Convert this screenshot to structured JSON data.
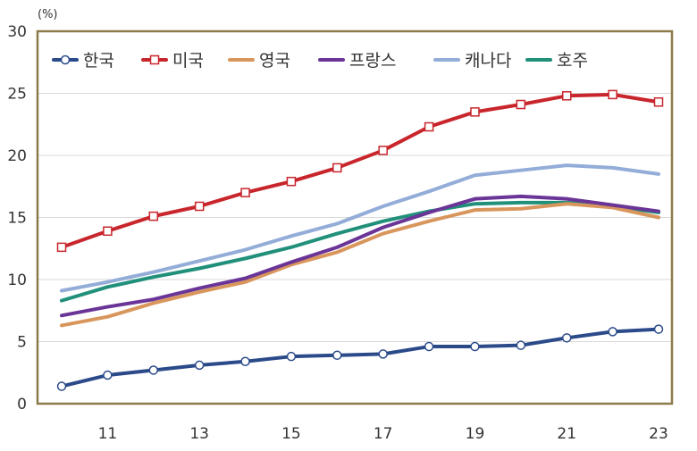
{
  "chart_data": {
    "type": "line",
    "unit_label": "(%)",
    "x": [
      2010,
      2011,
      2012,
      2013,
      2014,
      2015,
      2016,
      2017,
      2018,
      2019,
      2020,
      2021,
      2022,
      2023
    ],
    "xticks": [
      2011,
      2013,
      2015,
      2017,
      2019,
      2021,
      2023
    ],
    "xtick_labels": [
      "11",
      "13",
      "15",
      "17",
      "19",
      "21",
      "23"
    ],
    "ylim": [
      0,
      30
    ],
    "yticks": [
      0,
      5,
      10,
      15,
      20,
      25,
      30
    ],
    "ytick_labels": [
      "0",
      "5",
      "10",
      "15",
      "20",
      "25",
      "30"
    ],
    "grid": true,
    "legend_position": "top",
    "series": [
      {
        "name": "한국",
        "color": "#2b4a8a",
        "marker": "circle",
        "values": [
          1.4,
          2.3,
          2.7,
          3.1,
          3.4,
          3.8,
          3.9,
          4.0,
          4.6,
          4.6,
          4.7,
          5.3,
          5.8,
          6.0
        ]
      },
      {
        "name": "미국",
        "color": "#c8262c",
        "marker": "square",
        "values": [
          12.6,
          13.9,
          15.1,
          15.9,
          17.0,
          17.9,
          19.0,
          20.4,
          22.3,
          23.5,
          24.1,
          24.8,
          24.9,
          24.3
        ]
      },
      {
        "name": "영국",
        "color": "#d9965c",
        "marker": "none",
        "values": [
          6.3,
          7.0,
          8.1,
          9.0,
          9.8,
          11.2,
          12.2,
          13.7,
          14.7,
          15.6,
          15.7,
          16.1,
          15.8,
          15.0
        ]
      },
      {
        "name": "프랑스",
        "color": "#6a3597",
        "marker": "none",
        "values": [
          7.1,
          7.8,
          8.4,
          9.3,
          10.1,
          11.4,
          12.6,
          14.2,
          15.4,
          16.5,
          16.7,
          16.5,
          16.0,
          15.5
        ]
      },
      {
        "name": "캐나다",
        "color": "#93add8",
        "marker": "none",
        "values": [
          9.1,
          9.8,
          10.6,
          11.5,
          12.4,
          13.5,
          14.5,
          15.9,
          17.1,
          18.4,
          18.8,
          19.2,
          19.0,
          18.5
        ]
      },
      {
        "name": "호주",
        "color": "#21907a",
        "marker": "none",
        "values": [
          8.3,
          9.4,
          10.2,
          10.9,
          11.7,
          12.6,
          13.7,
          14.7,
          15.5,
          16.1,
          16.2,
          16.2,
          15.9,
          15.4
        ]
      }
    ]
  }
}
